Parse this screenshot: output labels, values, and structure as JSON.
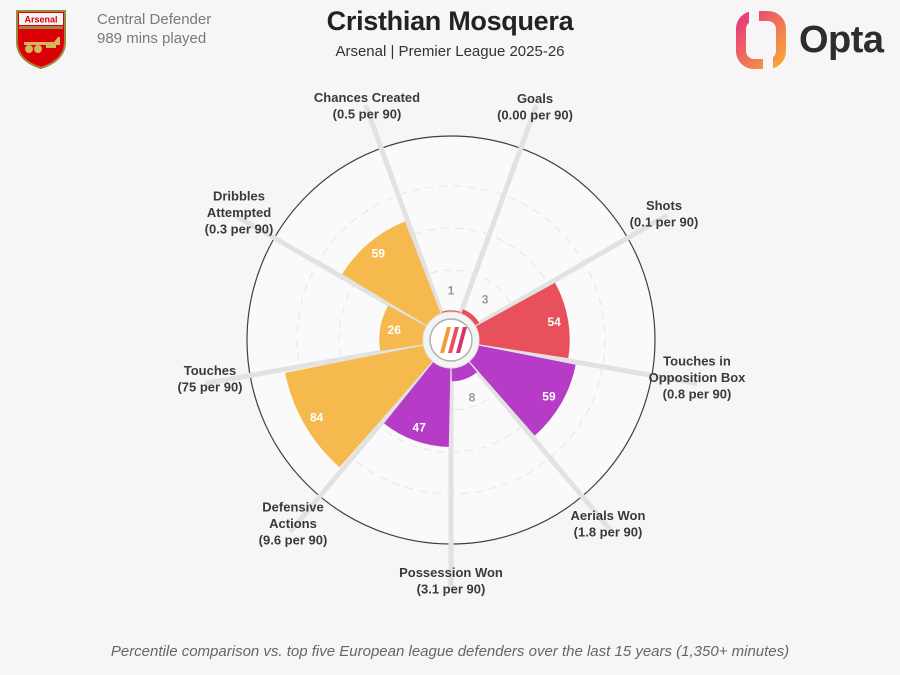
{
  "header": {
    "club_logo_text": "Arsenal",
    "position": "Central Defender",
    "minutes": "989 mins played",
    "player_name": "Cristhian Mosquera",
    "subtitle": "Arsenal | Premier League 2025-26",
    "brand": "Opta"
  },
  "footnote": "Percentile comparison vs. top five European league defenders over the last 15 years (1,350+ minutes)",
  "colors": {
    "attacking": "#f6b94e",
    "goal_threat": "#e8505b",
    "defending": "#b63cc8",
    "brand_pink": "#d6336c",
    "brand_orange": "#f39c35",
    "grid": "#dcdcdc"
  },
  "chart_data": {
    "type": "polar-bar",
    "max": 100,
    "metrics": [
      {
        "name": [
          "Goals"
        ],
        "per90": "(0.00 per 90)",
        "percentile": 1,
        "group": "goal_threat"
      },
      {
        "name": [
          "Shots"
        ],
        "per90": "(0.1 per 90)",
        "percentile": 3,
        "group": "goal_threat"
      },
      {
        "name": [
          "Touches in",
          "Opposition Box"
        ],
        "per90": "(0.8 per 90)",
        "percentile": 54,
        "group": "goal_threat"
      },
      {
        "name": [
          "Aerials Won"
        ],
        "per90": "(1.8 per 90)",
        "percentile": 59,
        "group": "defending"
      },
      {
        "name": [
          "Possession Won"
        ],
        "per90": "(3.1 per 90)",
        "percentile": 8,
        "group": "defending"
      },
      {
        "name": [
          "Defensive",
          "Actions"
        ],
        "per90": "(9.6 per 90)",
        "percentile": 47,
        "group": "defending"
      },
      {
        "name": [
          "Touches"
        ],
        "per90": "(75 per 90)",
        "percentile": 84,
        "group": "attacking"
      },
      {
        "name": [
          "Dribbles",
          "Attempted"
        ],
        "per90": "(0.3 per 90)",
        "percentile": 26,
        "group": "attacking"
      },
      {
        "name": [
          "Chances Created"
        ],
        "per90": "(0.5 per 90)",
        "percentile": 59,
        "group": "attacking"
      }
    ]
  }
}
